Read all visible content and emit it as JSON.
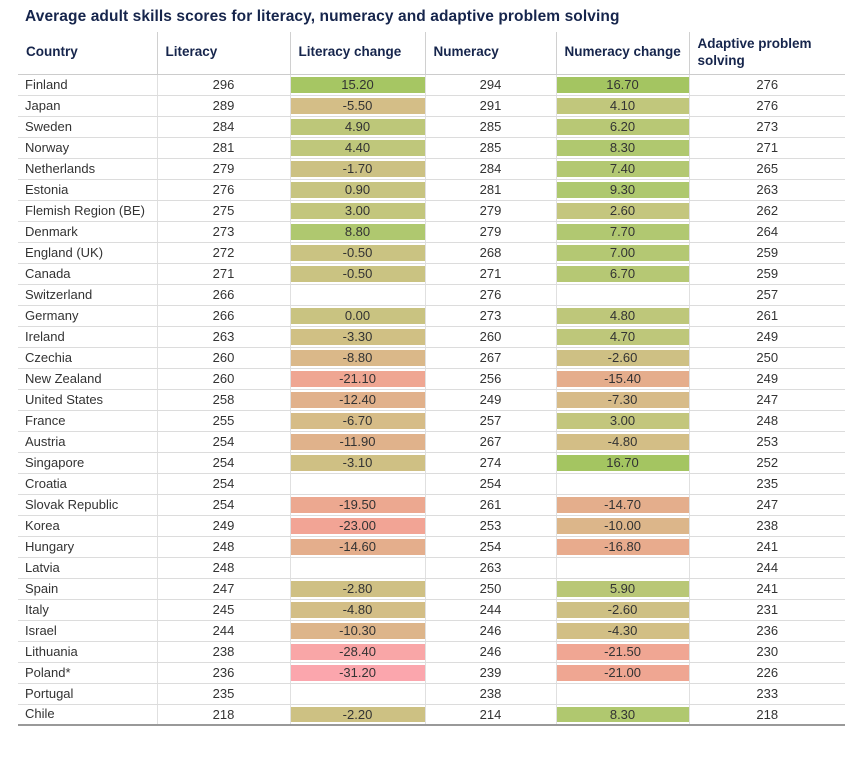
{
  "title": "Average adult skills scores for literacy, numeracy and adaptive problem solving",
  "colors": {
    "title_text": "#16254c",
    "header_text": "#16254c",
    "body_text": "#333333",
    "row_border": "#dcdcdc",
    "column_border": "#d0d0d0",
    "table_bottom_border": "#999999",
    "background": "#ffffff",
    "scale_positive_max": "#a4c560",
    "scale_zero": "#c9c381",
    "scale_negative_max": "#fca6af"
  },
  "chart_data": {
    "type": "table",
    "title": "Average adult skills scores for literacy, numeracy and adaptive problem solving",
    "columns": [
      "Country",
      "Literacy",
      "Literacy change",
      "Numeracy",
      "Numeracy change",
      "Adaptive problem solving"
    ],
    "column_keys": [
      "country",
      "literacy",
      "literacy_change",
      "numeracy",
      "numeracy_change",
      "adaptive"
    ],
    "color_scale": {
      "applies_to": [
        "literacy_change",
        "numeracy_change"
      ],
      "stops": [
        {
          "value": -32,
          "color": "#fca6af"
        },
        {
          "value": -28,
          "color": "#f9a6a6"
        },
        {
          "value": -23,
          "color": "#f2a495"
        },
        {
          "value": -17,
          "color": "#e8ab8d"
        },
        {
          "value": -12,
          "color": "#e0b28b"
        },
        {
          "value": -6,
          "color": "#d5bd87"
        },
        {
          "value": 0,
          "color": "#c9c381"
        },
        {
          "value": 4,
          "color": "#c1c77c"
        },
        {
          "value": 8,
          "color": "#b0c870"
        },
        {
          "value": 17,
          "color": "#a4c560"
        }
      ]
    },
    "rows": [
      {
        "country": "Finland",
        "literacy": "296",
        "literacy_change": "15.20",
        "numeracy": "294",
        "numeracy_change": "16.70",
        "adaptive": "276"
      },
      {
        "country": "Japan",
        "literacy": "289",
        "literacy_change": "-5.50",
        "numeracy": "291",
        "numeracy_change": "4.10",
        "adaptive": "276"
      },
      {
        "country": "Sweden",
        "literacy": "284",
        "literacy_change": "4.90",
        "numeracy": "285",
        "numeracy_change": "6.20",
        "adaptive": "273"
      },
      {
        "country": "Norway",
        "literacy": "281",
        "literacy_change": "4.40",
        "numeracy": "285",
        "numeracy_change": "8.30",
        "adaptive": "271"
      },
      {
        "country": "Netherlands",
        "literacy": "279",
        "literacy_change": "-1.70",
        "numeracy": "284",
        "numeracy_change": "7.40",
        "adaptive": "265"
      },
      {
        "country": "Estonia",
        "literacy": "276",
        "literacy_change": "0.90",
        "numeracy": "281",
        "numeracy_change": "9.30",
        "adaptive": "263"
      },
      {
        "country": "Flemish Region (BE)",
        "literacy": "275",
        "literacy_change": "3.00",
        "numeracy": "279",
        "numeracy_change": "2.60",
        "adaptive": "262"
      },
      {
        "country": "Denmark",
        "literacy": "273",
        "literacy_change": "8.80",
        "numeracy": "279",
        "numeracy_change": "7.70",
        "adaptive": "264"
      },
      {
        "country": "England (UK)",
        "literacy": "272",
        "literacy_change": "-0.50",
        "numeracy": "268",
        "numeracy_change": "7.00",
        "adaptive": "259"
      },
      {
        "country": "Canada",
        "literacy": "271",
        "literacy_change": "-0.50",
        "numeracy": "271",
        "numeracy_change": "6.70",
        "adaptive": "259"
      },
      {
        "country": "Switzerland",
        "literacy": "266",
        "literacy_change": null,
        "numeracy": "276",
        "numeracy_change": null,
        "adaptive": "257"
      },
      {
        "country": "Germany",
        "literacy": "266",
        "literacy_change": "0.00",
        "numeracy": "273",
        "numeracy_change": "4.80",
        "adaptive": "261"
      },
      {
        "country": "Ireland",
        "literacy": "263",
        "literacy_change": "-3.30",
        "numeracy": "260",
        "numeracy_change": "4.70",
        "adaptive": "249"
      },
      {
        "country": "Czechia",
        "literacy": "260",
        "literacy_change": "-8.80",
        "numeracy": "267",
        "numeracy_change": "-2.60",
        "adaptive": "250"
      },
      {
        "country": "New Zealand",
        "literacy": "260",
        "literacy_change": "-21.10",
        "numeracy": "256",
        "numeracy_change": "-15.40",
        "adaptive": "249"
      },
      {
        "country": "United States",
        "literacy": "258",
        "literacy_change": "-12.40",
        "numeracy": "249",
        "numeracy_change": "-7.30",
        "adaptive": "247"
      },
      {
        "country": "France",
        "literacy": "255",
        "literacy_change": "-6.70",
        "numeracy": "257",
        "numeracy_change": "3.00",
        "adaptive": "248"
      },
      {
        "country": "Austria",
        "literacy": "254",
        "literacy_change": "-11.90",
        "numeracy": "267",
        "numeracy_change": "-4.80",
        "adaptive": "253"
      },
      {
        "country": "Singapore",
        "literacy": "254",
        "literacy_change": "-3.10",
        "numeracy": "274",
        "numeracy_change": "16.70",
        "adaptive": "252"
      },
      {
        "country": "Croatia",
        "literacy": "254",
        "literacy_change": null,
        "numeracy": "254",
        "numeracy_change": null,
        "adaptive": "235"
      },
      {
        "country": "Slovak Republic",
        "literacy": "254",
        "literacy_change": "-19.50",
        "numeracy": "261",
        "numeracy_change": "-14.70",
        "adaptive": "247"
      },
      {
        "country": "Korea",
        "literacy": "249",
        "literacy_change": "-23.00",
        "numeracy": "253",
        "numeracy_change": "-10.00",
        "adaptive": "238"
      },
      {
        "country": "Hungary",
        "literacy": "248",
        "literacy_change": "-14.60",
        "numeracy": "254",
        "numeracy_change": "-16.80",
        "adaptive": "241"
      },
      {
        "country": "Latvia",
        "literacy": "248",
        "literacy_change": null,
        "numeracy": "263",
        "numeracy_change": null,
        "adaptive": "244"
      },
      {
        "country": "Spain",
        "literacy": "247",
        "literacy_change": "-2.80",
        "numeracy": "250",
        "numeracy_change": "5.90",
        "adaptive": "241"
      },
      {
        "country": "Italy",
        "literacy": "245",
        "literacy_change": "-4.80",
        "numeracy": "244",
        "numeracy_change": "-2.60",
        "adaptive": "231"
      },
      {
        "country": "Israel",
        "literacy": "244",
        "literacy_change": "-10.30",
        "numeracy": "246",
        "numeracy_change": "-4.30",
        "adaptive": "236"
      },
      {
        "country": "Lithuania",
        "literacy": "238",
        "literacy_change": "-28.40",
        "numeracy": "246",
        "numeracy_change": "-21.50",
        "adaptive": "230"
      },
      {
        "country": "Poland*",
        "literacy": "236",
        "literacy_change": "-31.20",
        "numeracy": "239",
        "numeracy_change": "-21.00",
        "adaptive": "226"
      },
      {
        "country": "Portugal",
        "literacy": "235",
        "literacy_change": null,
        "numeracy": "238",
        "numeracy_change": null,
        "adaptive": "233"
      },
      {
        "country": "Chile",
        "literacy": "218",
        "literacy_change": "-2.20",
        "numeracy": "214",
        "numeracy_change": "8.30",
        "adaptive": "218"
      }
    ]
  }
}
